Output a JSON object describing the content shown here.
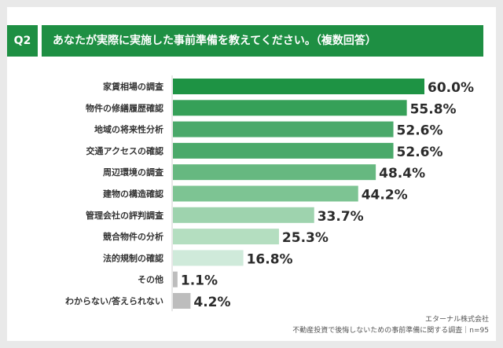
{
  "header": {
    "badge": "Q2",
    "title": "あなたが実際に実施した事前準備を教えてください。（複数回答）"
  },
  "chart_data": {
    "type": "bar",
    "orientation": "horizontal",
    "categories": [
      "家賃相場の調査",
      "物件の修繕履歴確認",
      "地域の将来性分析",
      "交通アクセスの確認",
      "周辺環境の調査",
      "建物の構造確認",
      "管理会社の評判調査",
      "競合物件の分析",
      "法的規制の確認",
      "その他",
      "わからない/答えられない"
    ],
    "values": [
      60.0,
      55.8,
      52.6,
      52.6,
      48.4,
      44.2,
      33.7,
      25.3,
      16.8,
      1.1,
      4.2
    ],
    "value_labels": [
      "60.0%",
      "55.8%",
      "52.6%",
      "52.6%",
      "48.4%",
      "44.2%",
      "33.7%",
      "25.3%",
      "16.8%",
      "1.1%",
      "4.2%"
    ],
    "colors": [
      "#1e9344",
      "#36a058",
      "#4aa96a",
      "#4aa96a",
      "#66b880",
      "#7dc493",
      "#9ed3ae",
      "#b4dec0",
      "#cfeada",
      "#bdbdbd",
      "#bdbdbd"
    ],
    "xlim": [
      0,
      60
    ],
    "grid": false,
    "legend": "none"
  },
  "footer": {
    "company": "エターナル株式会社",
    "survey": "不動産投資で後悔しないための事前準備に関する調査｜n=95"
  }
}
